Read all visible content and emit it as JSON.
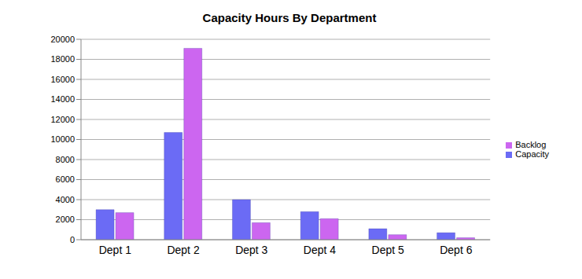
{
  "chart_data": {
    "type": "bar",
    "title": "Capacity Hours By Department",
    "categories": [
      "Dept 1",
      "Dept 2",
      "Dept 3",
      "Dept 4",
      "Dept 5",
      "Dept 6"
    ],
    "series": [
      {
        "name": "Capacity",
        "color": "#6b6bf5",
        "values": [
          3000,
          10700,
          4000,
          2800,
          1100,
          700
        ]
      },
      {
        "name": "Backlog",
        "color": "#cc66f0",
        "values": [
          2700,
          19100,
          1700,
          2100,
          500,
          200
        ]
      }
    ],
    "ylim": [
      0,
      20000
    ],
    "yticks": [
      0,
      2000,
      4000,
      6000,
      8000,
      10000,
      12000,
      14000,
      16000,
      18000,
      20000
    ],
    "grid": true,
    "legend": "right"
  }
}
